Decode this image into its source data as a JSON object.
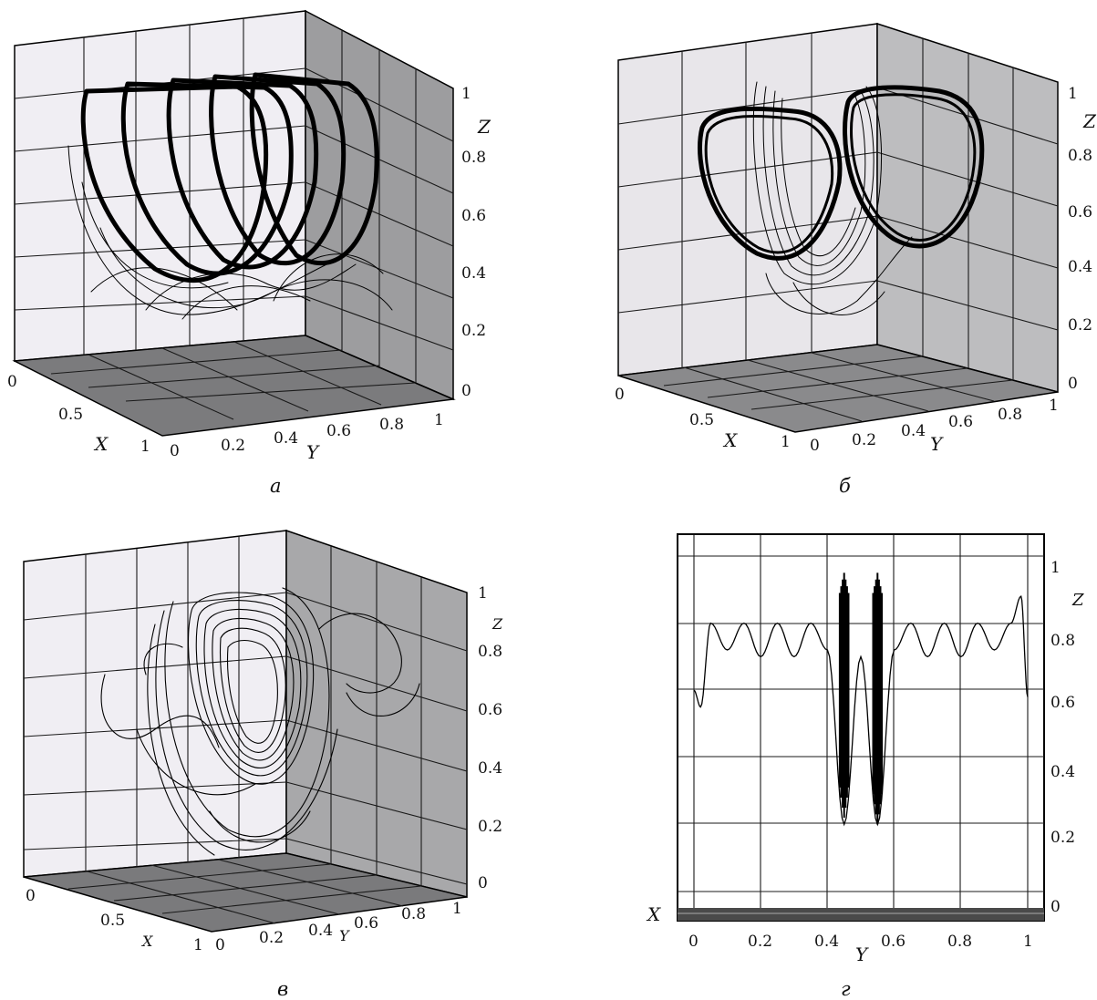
{
  "figure": {
    "panels": [
      {
        "id": "a",
        "caption": "а"
      },
      {
        "id": "b",
        "caption": "б"
      },
      {
        "id": "c",
        "caption": "в"
      },
      {
        "id": "d",
        "caption": "г"
      }
    ]
  },
  "axes3d": {
    "x_label": "X",
    "y_label": "Y",
    "z_label": "Z",
    "x_ticks": [
      "0",
      "0.5",
      "1"
    ],
    "y_ticks": [
      "0",
      "0.2",
      "0.4",
      "0.6",
      "0.8",
      "1"
    ],
    "z_ticks": [
      "0",
      "0.2",
      "0.4",
      "0.6",
      "0.8",
      "1"
    ]
  },
  "chart_data": [
    {
      "type": "line",
      "panel": "а",
      "projection": "3d",
      "xlabel": "X",
      "ylabel": "Y",
      "zlabel": "Z",
      "xlim": [
        0,
        1
      ],
      "ylim": [
        0,
        1
      ],
      "zlim": [
        0,
        1
      ],
      "series": [
        {
          "closed_orbits_count": 5,
          "orbit_y_centers": [
            0.15,
            0.32,
            0.5,
            0.68,
            0.85
          ],
          "orbit_z_range": [
            0.45,
            0.95
          ]
        }
      ]
    },
    {
      "type": "line",
      "panel": "б",
      "projection": "3d",
      "xlabel": "X",
      "ylabel": "Y",
      "zlabel": "Z",
      "xlim": [
        0,
        1
      ],
      "ylim": [
        0,
        1
      ],
      "zlim": [
        0,
        1
      ],
      "series": [
        {
          "closed_orbits_count": 2,
          "orbit_y_centers": [
            0.3,
            0.7
          ],
          "orbit_z_range": [
            0.4,
            0.95
          ]
        }
      ]
    },
    {
      "type": "line",
      "panel": "в",
      "projection": "3d",
      "xlabel": "X",
      "ylabel": "Y",
      "zlabel": "Z",
      "xlim": [
        0,
        1
      ],
      "ylim": [
        0,
        1
      ],
      "zlim": [
        0,
        1
      ],
      "series": [
        {
          "closed_orbits_count": 1,
          "orbit_y_centers": [
            0.5
          ],
          "orbit_z_range": [
            0.2,
            0.95
          ]
        }
      ]
    },
    {
      "type": "line",
      "panel": "г",
      "projection": "YZ",
      "xlabel": "Y",
      "ylabel": "Z",
      "corner_label": "X",
      "xlim": [
        -0.05,
        1.05
      ],
      "ylim": [
        -0.05,
        1.05
      ],
      "xticks": [
        "0",
        "0.2",
        "0.4",
        "0.6",
        "0.8",
        "1"
      ],
      "yticks": [
        "0",
        "0.2",
        "0.4",
        "0.6",
        "0.8",
        "1"
      ],
      "series": [
        {
          "name": "",
          "x": [
            0.0,
            0.02,
            0.05,
            0.1,
            0.15,
            0.2,
            0.25,
            0.3,
            0.35,
            0.4,
            0.45,
            0.5,
            0.55,
            0.6,
            0.65,
            0.7,
            0.75,
            0.8,
            0.85,
            0.9,
            0.95,
            0.98,
            1.0
          ],
          "y": [
            0.6,
            0.55,
            0.8,
            0.72,
            0.8,
            0.7,
            0.8,
            0.7,
            0.8,
            0.72,
            0.2,
            0.7,
            0.2,
            0.72,
            0.8,
            0.7,
            0.8,
            0.7,
            0.8,
            0.72,
            0.8,
            0.88,
            0.58
          ]
        }
      ]
    }
  ]
}
